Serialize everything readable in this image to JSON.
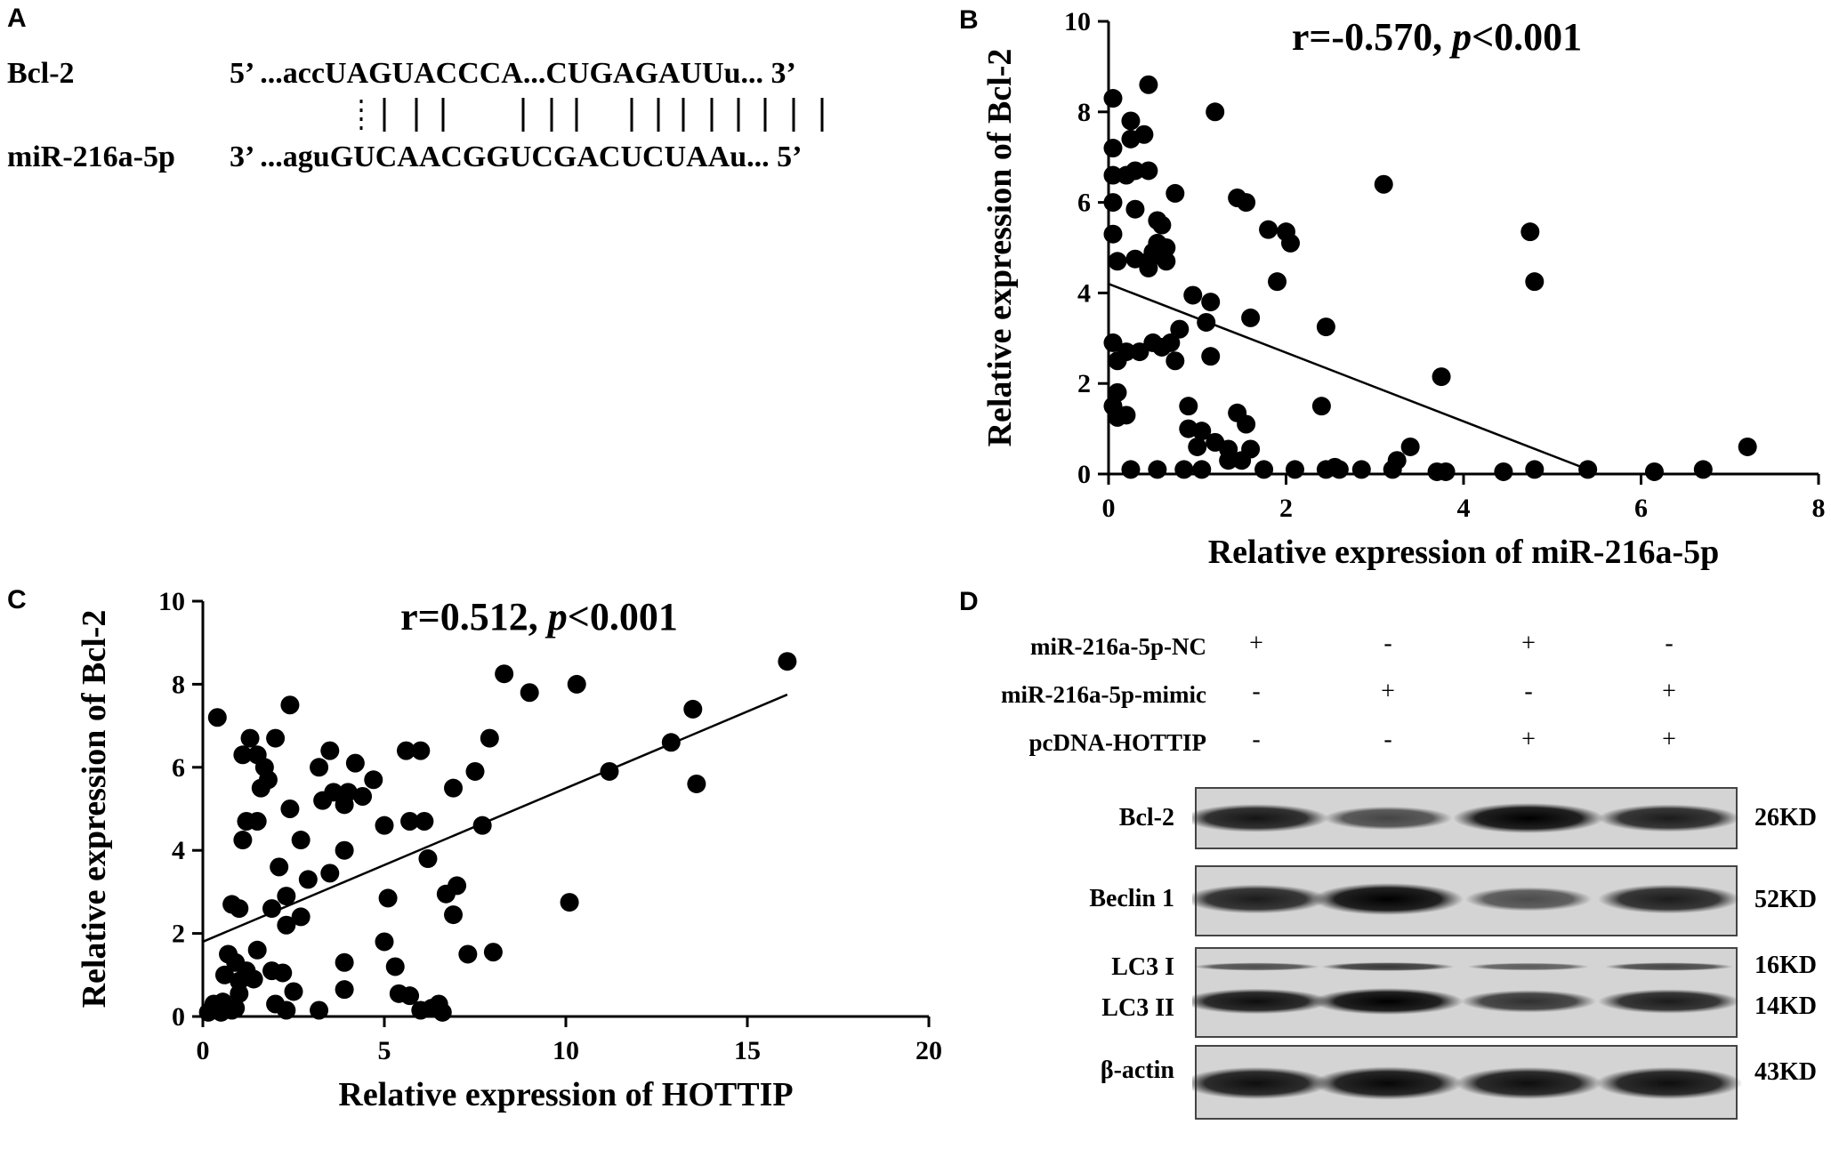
{
  "panels": {
    "A": "A",
    "B": "B",
    "C": "C",
    "D": "D"
  },
  "alignment": {
    "gene_label": "Bcl-2",
    "mirna_label": "miR-216a-5p",
    "gene_seq": "5’ ...accUAGUACCCA...CUGAGAUUu... 3’",
    "mirna_seq": "3’ ...aguGUCAACGGUCGACUCUAAu... 5’"
  },
  "chart_data": [
    {
      "panel": "B",
      "type": "scatter",
      "title": "r=-0.570, p<0.001",
      "title_r": "r=-0.570, ",
      "title_p": "p",
      "title_rest": "<0.001",
      "xlabel": "Relative expression of miR-216a-5p",
      "ylabel": "Relative expression of Bcl-2",
      "xlim": [
        0,
        8
      ],
      "ylim": [
        0,
        10
      ],
      "xticks": [
        "0",
        "2",
        "4",
        "6",
        "8"
      ],
      "yticks": [
        "0",
        "2",
        "4",
        "6",
        "8",
        "10"
      ],
      "trendline": {
        "x1": 0,
        "y1": 4.2,
        "x2": 5.4,
        "y2": 0.1
      },
      "points": [
        [
          0.05,
          8.3
        ],
        [
          0.45,
          8.6
        ],
        [
          1.2,
          8.0
        ],
        [
          0.25,
          7.8
        ],
        [
          0.05,
          7.2
        ],
        [
          0.25,
          7.4
        ],
        [
          0.4,
          7.5
        ],
        [
          0.45,
          6.7
        ],
        [
          0.05,
          6.6
        ],
        [
          0.2,
          6.6
        ],
        [
          0.3,
          6.7
        ],
        [
          0.75,
          6.2
        ],
        [
          1.45,
          6.1
        ],
        [
          1.55,
          6.0
        ],
        [
          3.1,
          6.4
        ],
        [
          0.05,
          6.0
        ],
        [
          0.3,
          5.85
        ],
        [
          0.55,
          5.6
        ],
        [
          0.6,
          5.5
        ],
        [
          0.05,
          5.3
        ],
        [
          0.55,
          5.1
        ],
        [
          0.65,
          5.0
        ],
        [
          0.5,
          4.9
        ],
        [
          1.8,
          5.4
        ],
        [
          2.0,
          5.35
        ],
        [
          2.05,
          5.1
        ],
        [
          4.75,
          5.35
        ],
        [
          0.1,
          4.7
        ],
        [
          0.3,
          4.75
        ],
        [
          0.45,
          4.7
        ],
        [
          0.65,
          4.7
        ],
        [
          0.45,
          4.55
        ],
        [
          1.9,
          4.25
        ],
        [
          4.8,
          4.25
        ],
        [
          0.95,
          3.95
        ],
        [
          1.15,
          3.8
        ],
        [
          1.1,
          3.35
        ],
        [
          1.6,
          3.45
        ],
        [
          2.45,
          3.25
        ],
        [
          0.05,
          2.9
        ],
        [
          0.2,
          2.7
        ],
        [
          0.35,
          2.7
        ],
        [
          0.5,
          2.9
        ],
        [
          0.6,
          2.8
        ],
        [
          0.7,
          2.9
        ],
        [
          0.8,
          3.2
        ],
        [
          0.75,
          2.5
        ],
        [
          0.1,
          2.5
        ],
        [
          1.15,
          2.6
        ],
        [
          3.75,
          2.15
        ],
        [
          0.1,
          1.8
        ],
        [
          0.05,
          1.5
        ],
        [
          0.1,
          1.25
        ],
        [
          0.2,
          1.3
        ],
        [
          0.9,
          1.5
        ],
        [
          0.9,
          1.0
        ],
        [
          1.05,
          0.95
        ],
        [
          1.45,
          1.35
        ],
        [
          1.55,
          1.1
        ],
        [
          2.4,
          1.5
        ],
        [
          1.0,
          0.6
        ],
        [
          1.2,
          0.7
        ],
        [
          1.35,
          0.55
        ],
        [
          1.6,
          0.55
        ],
        [
          3.4,
          0.6
        ],
        [
          7.2,
          0.6
        ],
        [
          0.25,
          0.1
        ],
        [
          0.55,
          0.1
        ],
        [
          0.85,
          0.1
        ],
        [
          1.05,
          0.1
        ],
        [
          1.75,
          0.1
        ],
        [
          2.1,
          0.1
        ],
        [
          2.45,
          0.1
        ],
        [
          2.55,
          0.15
        ],
        [
          2.85,
          0.1
        ],
        [
          3.2,
          0.1
        ],
        [
          3.7,
          0.05
        ],
        [
          3.8,
          0.05
        ],
        [
          4.45,
          0.05
        ],
        [
          4.8,
          0.1
        ],
        [
          5.4,
          0.1
        ],
        [
          6.15,
          0.05
        ],
        [
          6.7,
          0.1
        ],
        [
          1.35,
          0.3
        ],
        [
          1.5,
          0.3
        ],
        [
          2.6,
          0.1
        ],
        [
          3.25,
          0.3
        ]
      ]
    },
    {
      "panel": "C",
      "type": "scatter",
      "title": "r=0.512, p<0.001",
      "title_r": "r=0.512, ",
      "title_p": "p",
      "title_rest": "<0.001",
      "xlabel": "Relative expression of HOTTIP",
      "ylabel": "Relative expression of Bcl-2",
      "xlim": [
        0,
        20
      ],
      "ylim": [
        0,
        10
      ],
      "xticks": [
        "0",
        "5",
        "10",
        "15",
        "20"
      ],
      "yticks": [
        "0",
        "2",
        "4",
        "6",
        "8",
        "10"
      ],
      "trendline": {
        "x1": 0,
        "y1": 1.8,
        "x2": 16.1,
        "y2": 7.75
      },
      "points": [
        [
          16.1,
          8.55
        ],
        [
          8.3,
          8.25
        ],
        [
          10.3,
          8.0
        ],
        [
          9.0,
          7.8
        ],
        [
          13.5,
          7.4
        ],
        [
          2.4,
          7.5
        ],
        [
          0.4,
          7.2
        ],
        [
          12.9,
          6.6
        ],
        [
          1.3,
          6.7
        ],
        [
          2.0,
          6.7
        ],
        [
          7.9,
          6.7
        ],
        [
          1.1,
          6.3
        ],
        [
          1.5,
          6.3
        ],
        [
          3.5,
          6.4
        ],
        [
          5.6,
          6.4
        ],
        [
          6.0,
          6.4
        ],
        [
          1.7,
          6.0
        ],
        [
          3.2,
          6.0
        ],
        [
          4.2,
          6.1
        ],
        [
          7.5,
          5.9
        ],
        [
          11.2,
          5.9
        ],
        [
          1.8,
          5.7
        ],
        [
          4.7,
          5.7
        ],
        [
          13.6,
          5.6
        ],
        [
          1.6,
          5.5
        ],
        [
          3.3,
          5.2
        ],
        [
          3.6,
          5.4
        ],
        [
          4.0,
          5.4
        ],
        [
          4.4,
          5.3
        ],
        [
          6.9,
          5.5
        ],
        [
          2.4,
          5.0
        ],
        [
          3.9,
          5.1
        ],
        [
          1.2,
          4.7
        ],
        [
          1.5,
          4.7
        ],
        [
          5.0,
          4.6
        ],
        [
          5.7,
          4.7
        ],
        [
          6.1,
          4.7
        ],
        [
          7.7,
          4.6
        ],
        [
          1.1,
          4.25
        ],
        [
          2.7,
          4.25
        ],
        [
          3.9,
          4.0
        ],
        [
          2.1,
          3.6
        ],
        [
          3.5,
          3.45
        ],
        [
          6.2,
          3.8
        ],
        [
          2.9,
          3.3
        ],
        [
          6.7,
          2.95
        ],
        [
          7.0,
          3.15
        ],
        [
          5.1,
          2.85
        ],
        [
          10.1,
          2.75
        ],
        [
          0.8,
          2.7
        ],
        [
          1.0,
          2.6
        ],
        [
          1.9,
          2.6
        ],
        [
          2.3,
          2.9
        ],
        [
          2.7,
          2.4
        ],
        [
          6.9,
          2.45
        ],
        [
          2.3,
          2.2
        ],
        [
          5.0,
          1.8
        ],
        [
          0.7,
          1.5
        ],
        [
          1.5,
          1.6
        ],
        [
          3.9,
          1.3
        ],
        [
          7.3,
          1.5
        ],
        [
          8.0,
          1.55
        ],
        [
          0.9,
          1.3
        ],
        [
          1.2,
          1.1
        ],
        [
          1.9,
          1.1
        ],
        [
          2.2,
          1.05
        ],
        [
          5.3,
          1.2
        ],
        [
          0.6,
          1.0
        ],
        [
          1.0,
          0.85
        ],
        [
          1.4,
          0.9
        ],
        [
          2.5,
          0.6
        ],
        [
          5.4,
          0.55
        ],
        [
          5.7,
          0.5
        ],
        [
          0.3,
          0.3
        ],
        [
          1.0,
          0.55
        ],
        [
          0.55,
          0.35
        ],
        [
          2.0,
          0.3
        ],
        [
          3.9,
          0.65
        ],
        [
          0.15,
          0.1
        ],
        [
          0.5,
          0.1
        ],
        [
          0.8,
          0.15
        ],
        [
          2.3,
          0.15
        ],
        [
          3.2,
          0.15
        ],
        [
          6.0,
          0.15
        ],
        [
          6.3,
          0.2
        ],
        [
          6.5,
          0.3
        ],
        [
          6.6,
          0.1
        ],
        [
          0.9,
          0.2
        ]
      ]
    }
  ],
  "western_blot": {
    "conditions": [
      {
        "label": "miR-216a-5p-NC",
        "signs": [
          "+",
          "-",
          "+",
          "-"
        ]
      },
      {
        "label": "miR-216a-5p-mimic",
        "signs": [
          "-",
          "+",
          "-",
          "+"
        ]
      },
      {
        "label": "pcDNA-HOTTIP",
        "signs": [
          "-",
          "-",
          "+",
          "+"
        ]
      }
    ],
    "blots": [
      {
        "name": "Bcl-2",
        "kd": "26KD",
        "intensity": [
          0.85,
          0.5,
          1.0,
          0.8
        ]
      },
      {
        "name": "Beclin 1",
        "kd": "52KD",
        "intensity": [
          0.8,
          1.0,
          0.45,
          0.8
        ]
      },
      {
        "name": "LC3 I",
        "kd": "16KD",
        "intensity": [
          0.45,
          0.6,
          0.35,
          0.5
        ]
      },
      {
        "name": "LC3 II",
        "kd": "14KD",
        "intensity": [
          0.9,
          1.0,
          0.65,
          0.8
        ]
      },
      {
        "name": "β-actin",
        "kd": "43KD",
        "intensity": [
          0.9,
          0.95,
          0.9,
          0.9
        ]
      }
    ]
  }
}
